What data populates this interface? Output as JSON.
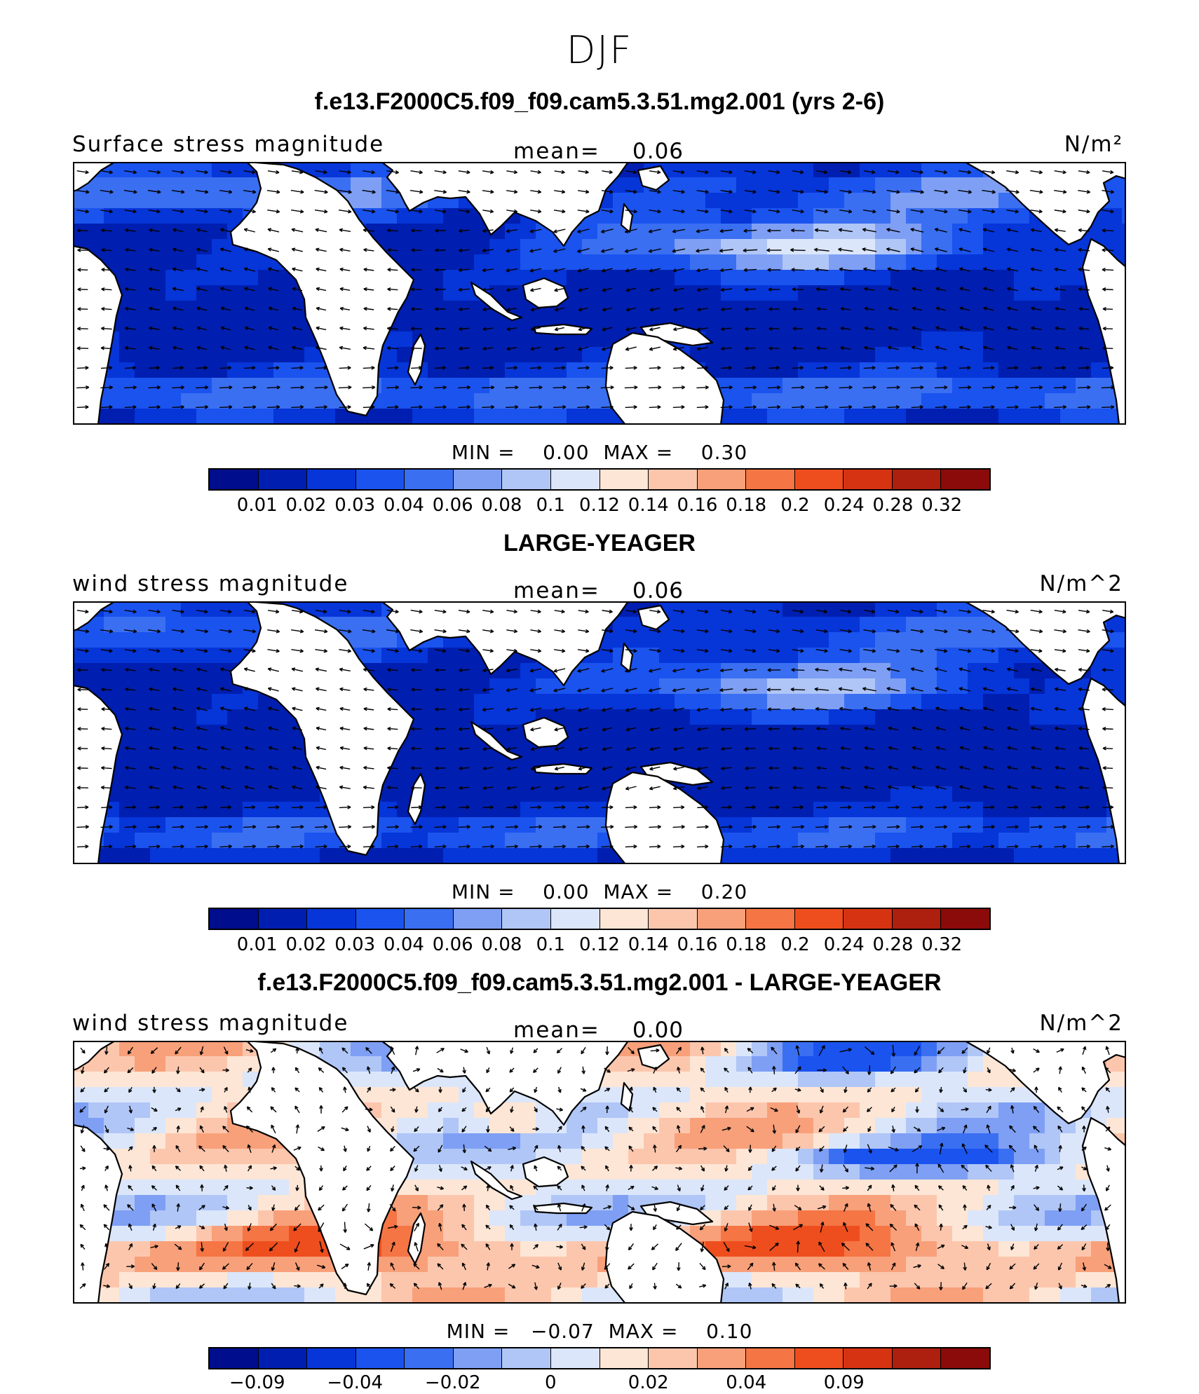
{
  "season": "DJF",
  "palette": [
    "#000d8c",
    "#001fb0",
    "#0635d8",
    "#1a53ee",
    "#3a6ff2",
    "#7e9ff4",
    "#b0c6f7",
    "#dbe6fa",
    "#fde6d5",
    "#fcc6ad",
    "#f8a07a",
    "#f57544",
    "#ee4e1e",
    "#d63312",
    "#ad1f0e",
    "#8a0b09"
  ],
  "colors": {
    "land": "#ffffff",
    "coast": "#000000",
    "arrow": "#000000"
  },
  "panels": [
    {
      "title": "f.e13.F2000C5.f09_f09.cam5.3.51.mg2.001 (yrs 2-6)",
      "left_label": "Surface stress magnitude",
      "mean_label": "mean=",
      "mean_value": "0.06",
      "units": "N/m²",
      "minmax": "MIN =    0.00  MAX =    0.30",
      "tick_labels": [
        "0.01",
        "0.02",
        "0.03",
        "0.04",
        "0.06",
        "0.08",
        "0.1",
        "0.12",
        "0.14",
        "0.16",
        "0.18",
        "0.2",
        "0.24",
        "0.28",
        "0.32"
      ]
    },
    {
      "title": "LARGE-YEAGER",
      "left_label": "wind stress magnitude",
      "mean_label": "mean=",
      "mean_value": "0.06",
      "units": "N/m^2",
      "minmax": "MIN =    0.00  MAX =    0.20",
      "tick_labels": [
        "0.01",
        "0.02",
        "0.03",
        "0.04",
        "0.06",
        "0.08",
        "0.1",
        "0.12",
        "0.14",
        "0.16",
        "0.18",
        "0.2",
        "0.24",
        "0.28",
        "0.32"
      ]
    },
    {
      "title": "f.e13.F2000C5.f09_f09.cam5.3.51.mg2.001 - LARGE-YEAGER",
      "left_label": "wind stress magnitude",
      "mean_label": "mean=",
      "mean_value": "0.00",
      "units": "N/m^2",
      "minmax": "MIN =   −0.07  MAX =    0.10",
      "tick_labels": [
        "−0.09",
        "−0.04",
        "−0.02",
        "0",
        "0.02",
        "0.04",
        "0.09"
      ]
    }
  ]
}
